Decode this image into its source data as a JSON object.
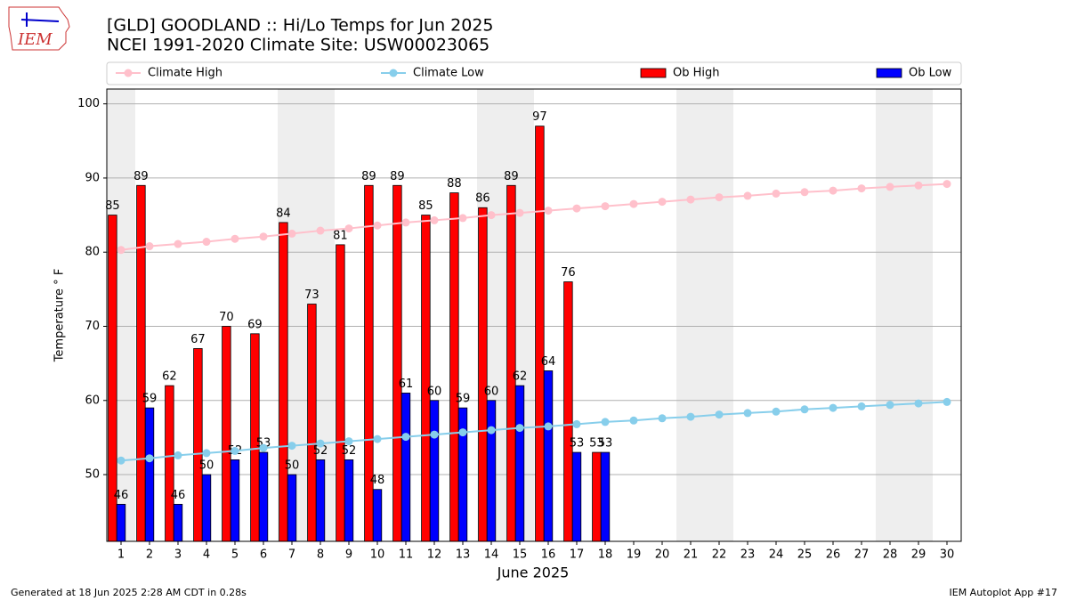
{
  "chart_data": {
    "type": "bar",
    "title": "[GLD] GOODLAND :: Hi/Lo Temps for Jun 2025",
    "subtitle": "NCEI 1991-2020 Climate Site: USW00023065",
    "x_label": "June 2025",
    "y_label": "Temperature ° F",
    "x": [
      1,
      2,
      3,
      4,
      5,
      6,
      7,
      8,
      9,
      10,
      11,
      12,
      13,
      14,
      15,
      16,
      17,
      18,
      19,
      20,
      21,
      22,
      23,
      24,
      25,
      26,
      27,
      28,
      29,
      30
    ],
    "xlim": [
      0.5,
      30.5
    ],
    "xticks": [
      1,
      2,
      3,
      4,
      5,
      6,
      7,
      8,
      9,
      10,
      11,
      12,
      13,
      14,
      15,
      16,
      17,
      18,
      19,
      20,
      21,
      22,
      23,
      24,
      25,
      26,
      27,
      28,
      29,
      30
    ],
    "ylim": [
      41,
      102
    ],
    "yticks": [
      50,
      60,
      70,
      80,
      90,
      100
    ],
    "grid": true,
    "shaded_days": [
      1,
      7,
      8,
      14,
      15,
      21,
      22,
      28,
      29
    ],
    "legend": "top",
    "series": [
      {
        "name": "Climate High",
        "type": "line",
        "color": "#ffc0cb",
        "values": [
          80.3,
          80.8,
          81.1,
          81.4,
          81.8,
          82.1,
          82.5,
          82.9,
          83.2,
          83.6,
          84.0,
          84.3,
          84.6,
          85.0,
          85.3,
          85.6,
          85.9,
          86.2,
          86.5,
          86.8,
          87.1,
          87.4,
          87.6,
          87.9,
          88.1,
          88.3,
          88.6,
          88.8,
          89.0,
          89.2
        ]
      },
      {
        "name": "Climate Low",
        "type": "line",
        "color": "#87ceeb",
        "values": [
          51.9,
          52.2,
          52.6,
          52.9,
          53.2,
          53.6,
          53.9,
          54.2,
          54.5,
          54.8,
          55.1,
          55.4,
          55.7,
          56.0,
          56.3,
          56.5,
          56.8,
          57.1,
          57.3,
          57.6,
          57.8,
          58.1,
          58.3,
          58.5,
          58.8,
          59.0,
          59.2,
          59.4,
          59.6,
          59.8
        ]
      },
      {
        "name": "Ob High",
        "type": "bar",
        "color": "#ff0000",
        "values": [
          85,
          89,
          62,
          67,
          70,
          69,
          84,
          73,
          81,
          89,
          89,
          85,
          88,
          86,
          89,
          97,
          76,
          53,
          null,
          null,
          null,
          null,
          null,
          null,
          null,
          null,
          null,
          null,
          null,
          null
        ]
      },
      {
        "name": "Ob Low",
        "type": "bar",
        "color": "#0000ff",
        "values": [
          46,
          59,
          46,
          50,
          52,
          53,
          50,
          52,
          52,
          48,
          61,
          60,
          59,
          60,
          62,
          64,
          53,
          53,
          null,
          null,
          null,
          null,
          null,
          null,
          null,
          null,
          null,
          null,
          null,
          null
        ]
      }
    ],
    "logo_text": "IEM",
    "footer_left": "Generated at 18 Jun 2025 2:28 AM CDT in 0.28s",
    "footer_right": "IEM Autoplot App #17"
  }
}
